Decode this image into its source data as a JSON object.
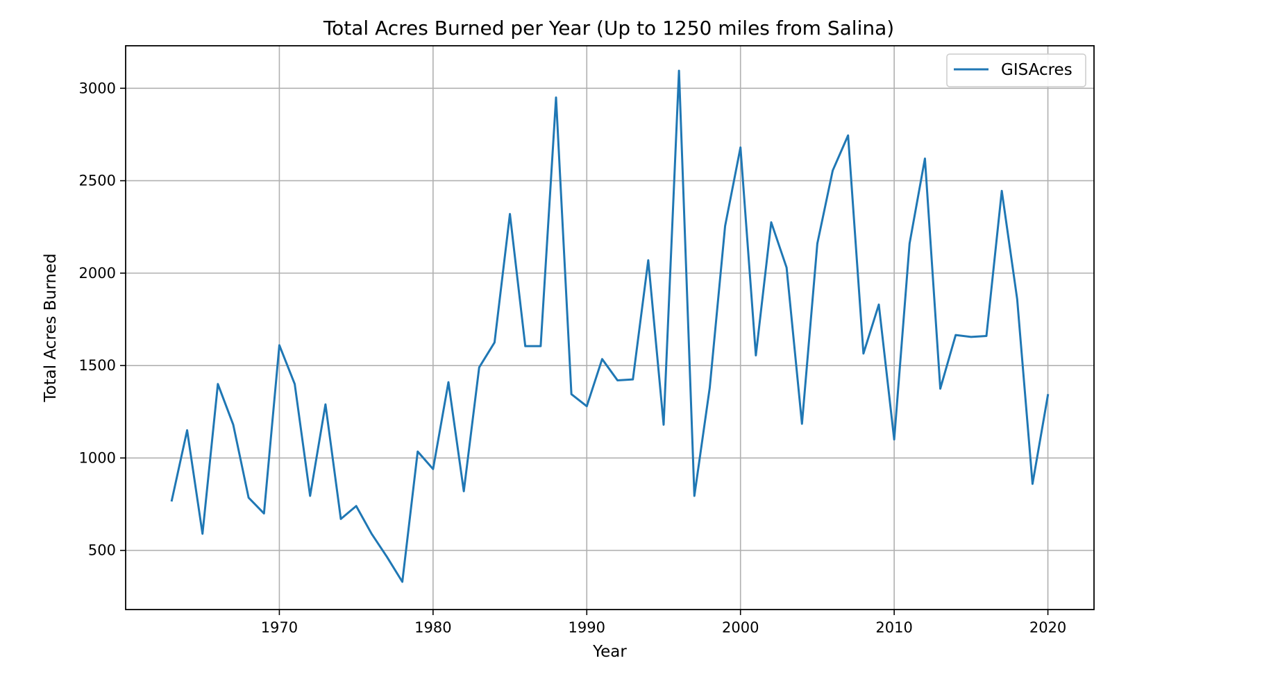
{
  "chart_data": {
    "type": "line",
    "title": "Total Acres Burned per Year (Up to 1250 miles from Salina)",
    "xlabel": "Year",
    "ylabel": "Total Acres Burned",
    "xlim": [
      1960,
      2023
    ],
    "ylim": [
      180,
      3230
    ],
    "xticks": [
      1970,
      1980,
      1990,
      2000,
      2010,
      2020
    ],
    "yticks": [
      500,
      1000,
      1500,
      2000,
      2500,
      3000
    ],
    "grid": true,
    "legend_position": "top-right",
    "series": [
      {
        "name": "GISAcres",
        "color": "#1f77b4",
        "x": [
          1963,
          1964,
          1965,
          1966,
          1967,
          1968,
          1969,
          1970,
          1971,
          1972,
          1973,
          1974,
          1975,
          1976,
          1977,
          1978,
          1979,
          1980,
          1981,
          1982,
          1983,
          1984,
          1985,
          1986,
          1987,
          1988,
          1989,
          1990,
          1991,
          1992,
          1993,
          1994,
          1995,
          1996,
          1997,
          1998,
          1999,
          2000,
          2001,
          2002,
          2003,
          2004,
          2005,
          2006,
          2007,
          2008,
          2009,
          2010,
          2011,
          2012,
          2013,
          2014,
          2015,
          2016,
          2017,
          2018,
          2019,
          2020
        ],
        "y": [
          770,
          1150,
          590,
          1400,
          1180,
          785,
          700,
          1610,
          1400,
          795,
          1290,
          670,
          740,
          590,
          465,
          330,
          1035,
          940,
          1410,
          820,
          1490,
          1625,
          2320,
          1605,
          1605,
          2950,
          1345,
          1280,
          1535,
          1420,
          1425,
          2070,
          1180,
          3095,
          795,
          1380,
          2255,
          2680,
          1555,
          2275,
          2030,
          1185,
          2160,
          2555,
          2745,
          1565,
          1830,
          1100,
          2160,
          2620,
          1375,
          1665,
          1655,
          1660,
          2445,
          1860,
          860,
          1340
        ]
      }
    ]
  }
}
